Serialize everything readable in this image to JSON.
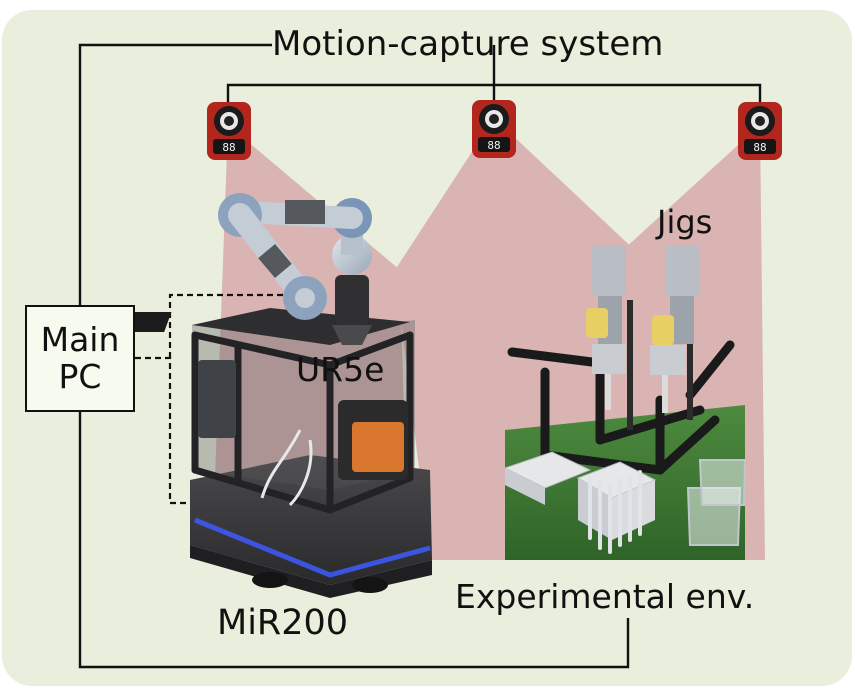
{
  "labels": {
    "motion_capture": "Motion-capture system",
    "main_pc_line1": "Main",
    "main_pc_line2": "PC",
    "jigs": "Jigs",
    "ur5e": "UR5e",
    "experimental_env": "Experimental env.",
    "mir200": "MiR200"
  },
  "camera_display": "88",
  "colors": {
    "background_panel": "#e9efdc",
    "camera_fov": "#d9b4b2",
    "camera_red": "#b3261e",
    "lines": "#111111",
    "robot_base": "#3a3a3c",
    "robot_glow": "#3d5cff",
    "floor_mat": "#3f7a35",
    "orange_box": "#d9772e"
  }
}
